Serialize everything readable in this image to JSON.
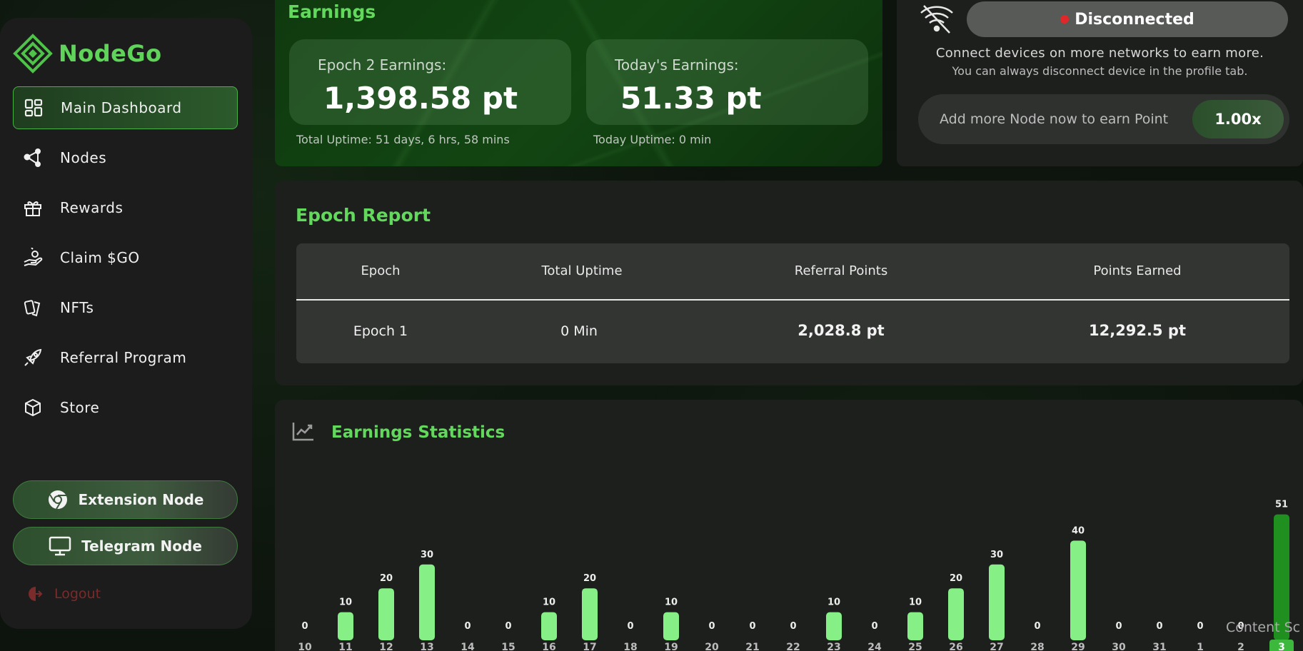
{
  "brand": {
    "name": "NodeGo",
    "accent": "#5fd35a"
  },
  "sidebar": {
    "items": [
      {
        "label": "Main Dashboard",
        "icon": "grid-icon",
        "active": true
      },
      {
        "label": "Nodes",
        "icon": "nodes-icon"
      },
      {
        "label": "Rewards",
        "icon": "gift-icon"
      },
      {
        "label": "Claim $GO",
        "icon": "hand-coin-icon"
      },
      {
        "label": "NFTs",
        "icon": "cards-icon"
      },
      {
        "label": "Referral Program",
        "icon": "rocket-icon"
      },
      {
        "label": "Store",
        "icon": "box-icon"
      }
    ],
    "extension_node": "Extension Node",
    "telegram_node": "Telegram Node",
    "logout": "Logout"
  },
  "earnings": {
    "title": "Earnings",
    "epoch_label": "Epoch 2 Earnings:",
    "epoch_value": "1,398.58 pt",
    "epoch_uptime": "Total Uptime: 51 days, 6 hrs, 58 mins",
    "today_label": "Today's Earnings:",
    "today_value": "51.33 pt",
    "today_uptime": "Today Uptime: 0 min"
  },
  "connection": {
    "status": "Disconnected",
    "status_color": "#e0282b",
    "line1": "Connect devices on more networks to earn more.",
    "line2": "You can always disconnect device in the profile tab.",
    "add_node_text": "Add more Node now to earn Point",
    "multiplier": "1.00x"
  },
  "report": {
    "title": "Epoch Report",
    "headers": [
      "Epoch",
      "Total Uptime",
      "Referral Points",
      "Points Earned"
    ],
    "rows": [
      [
        "Epoch 1",
        "0 Min",
        "2,028.8 pt",
        "12,292.5 pt"
      ]
    ]
  },
  "stats": {
    "title": "Earnings Statistics",
    "chart_data": {
      "type": "bar",
      "categories": [
        "10",
        "11",
        "12",
        "13",
        "14",
        "15",
        "16",
        "17",
        "18",
        "19",
        "20",
        "21",
        "22",
        "23",
        "24",
        "25",
        "26",
        "27",
        "28",
        "29",
        "30",
        "31",
        "1",
        "2",
        "3"
      ],
      "values": [
        0,
        10,
        20,
        30,
        0,
        0,
        10,
        20,
        0,
        10,
        0,
        0,
        0,
        10,
        0,
        10,
        20,
        30,
        0,
        40,
        0,
        0,
        0,
        0,
        51
      ],
      "highlight_index": 24,
      "bar_color": "#86ef86",
      "highlight_color": "#1f8f1f"
    }
  },
  "overlay_text": "Content Sc"
}
